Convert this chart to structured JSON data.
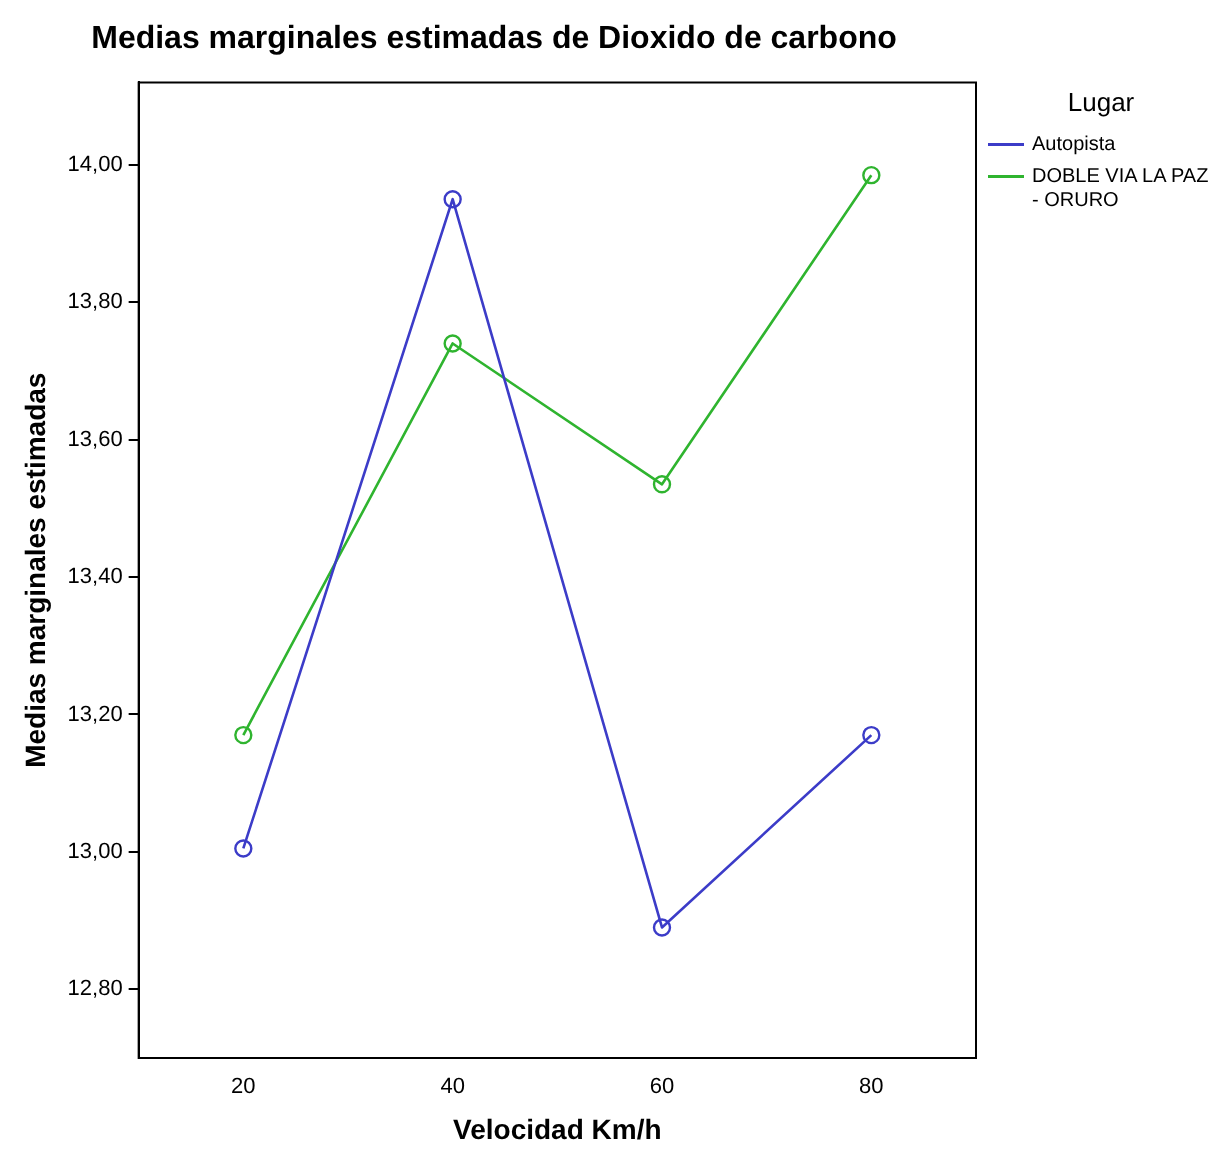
{
  "chart_data": {
    "type": "line",
    "title": "Medias marginales estimadas de Dioxido de carbono",
    "xlabel": "Velocidad Km/h",
    "ylabel": "Medias marginales estimadas",
    "legend_title": "Lugar",
    "categories": [
      "20",
      "40",
      "60",
      "80"
    ],
    "series": [
      {
        "name": "Autopista",
        "color": "#3c3cc8",
        "values": [
          13.005,
          13.95,
          12.89,
          13.17
        ]
      },
      {
        "name": "DOBLE VIA LA PAZ - ORURO",
        "color": "#2fb42f",
        "values": [
          13.17,
          13.74,
          13.535,
          13.985
        ]
      }
    ],
    "ylim": [
      12.7,
      14.12
    ],
    "yticks": [
      {
        "value": 12.8,
        "label": "12,80"
      },
      {
        "value": 13,
        "label": "13,00"
      },
      {
        "value": 13.2,
        "label": "13,20"
      },
      {
        "value": 13.4,
        "label": "13,40"
      },
      {
        "value": 13.6,
        "label": "13,60"
      },
      {
        "value": 13.8,
        "label": "13,80"
      },
      {
        "value": 14,
        "label": "14,00"
      }
    ],
    "grid": false,
    "legend": "top right",
    "marker": "circle",
    "line_style": "solid"
  }
}
